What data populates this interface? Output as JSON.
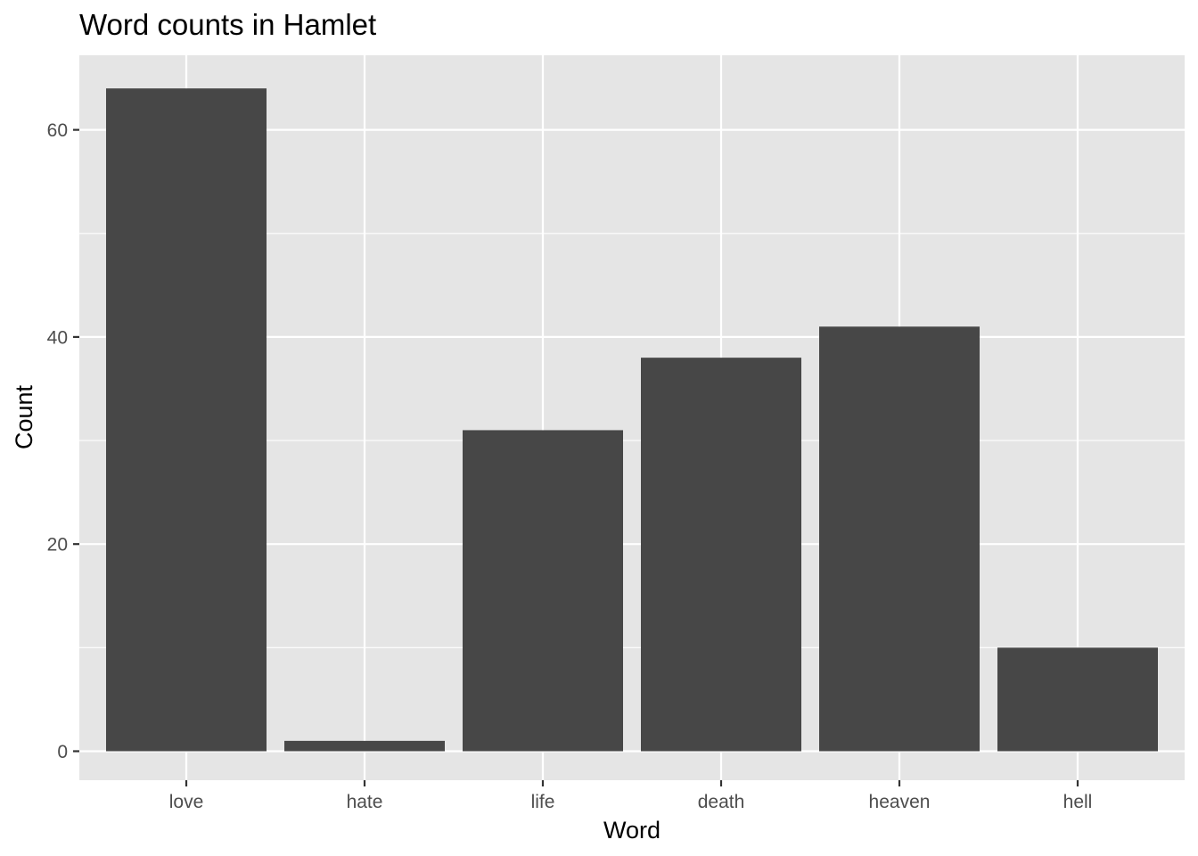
{
  "chart_data": {
    "type": "bar",
    "title": "Word counts in Hamlet",
    "xlabel": "Word",
    "ylabel": "Count",
    "categories": [
      "love",
      "hate",
      "life",
      "death",
      "heaven",
      "hell"
    ],
    "values": [
      64,
      1,
      31,
      38,
      41,
      10
    ],
    "ylim": [
      -2.8,
      67.2
    ],
    "yticks": [
      0,
      20,
      40,
      60
    ],
    "grid": true,
    "legend": "none",
    "colors": {
      "bar": "#474747",
      "panel": "#e5e5e5",
      "grid": "#ffffff",
      "tick_text": "#4d4d4d",
      "tick_mark": "#333333"
    }
  }
}
